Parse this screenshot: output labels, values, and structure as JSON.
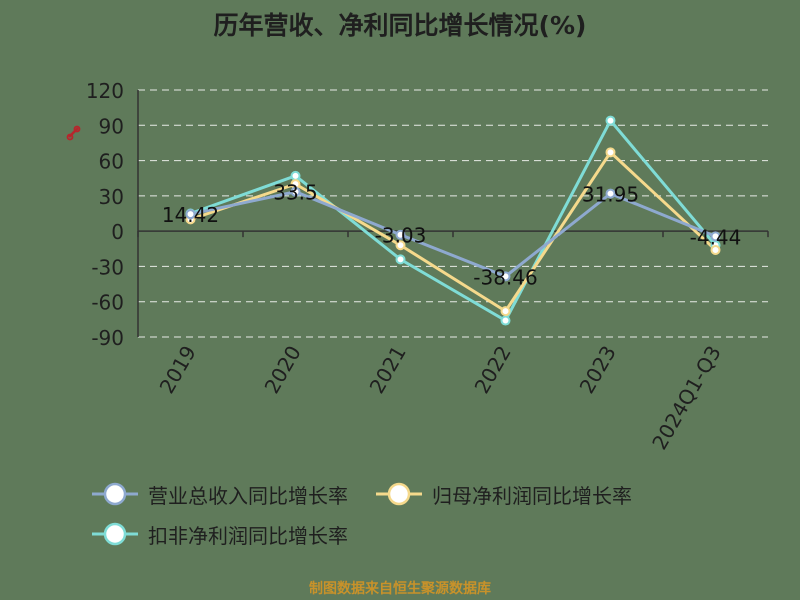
{
  "chart_data": {
    "type": "line",
    "title": "历年营收、净利同比增长情况(%)",
    "categories": [
      "2019",
      "2020",
      "2021",
      "2022",
      "2023",
      "2024Q1-Q3"
    ],
    "ylim": [
      -90,
      120
    ],
    "yticks": [
      120,
      90,
      60,
      30,
      0,
      -30,
      -60,
      -90
    ],
    "grid": true,
    "legend_position": "bottom",
    "series": [
      {
        "name": "营业总收入同比增长率",
        "color": "#8ea9cf",
        "values": [
          14.42,
          33.5,
          -3.03,
          -38.46,
          31.95,
          -4.44
        ],
        "labels": [
          "14.42",
          "33.5",
          "-3.03",
          "-38.46",
          "31.95",
          "-4.44"
        ]
      },
      {
        "name": "归母净利润同比增长率",
        "color": "#f5d98c",
        "values": [
          10,
          40,
          -12,
          -68,
          67,
          -16
        ]
      },
      {
        "name": "扣非净利润同比增长率",
        "color": "#7fdcd6",
        "values": [
          15,
          47,
          -24,
          -76,
          94,
          -12
        ]
      }
    ]
  },
  "source_text": "制图数据来自恒生聚源数据库",
  "watermark_icon": "link-icon"
}
